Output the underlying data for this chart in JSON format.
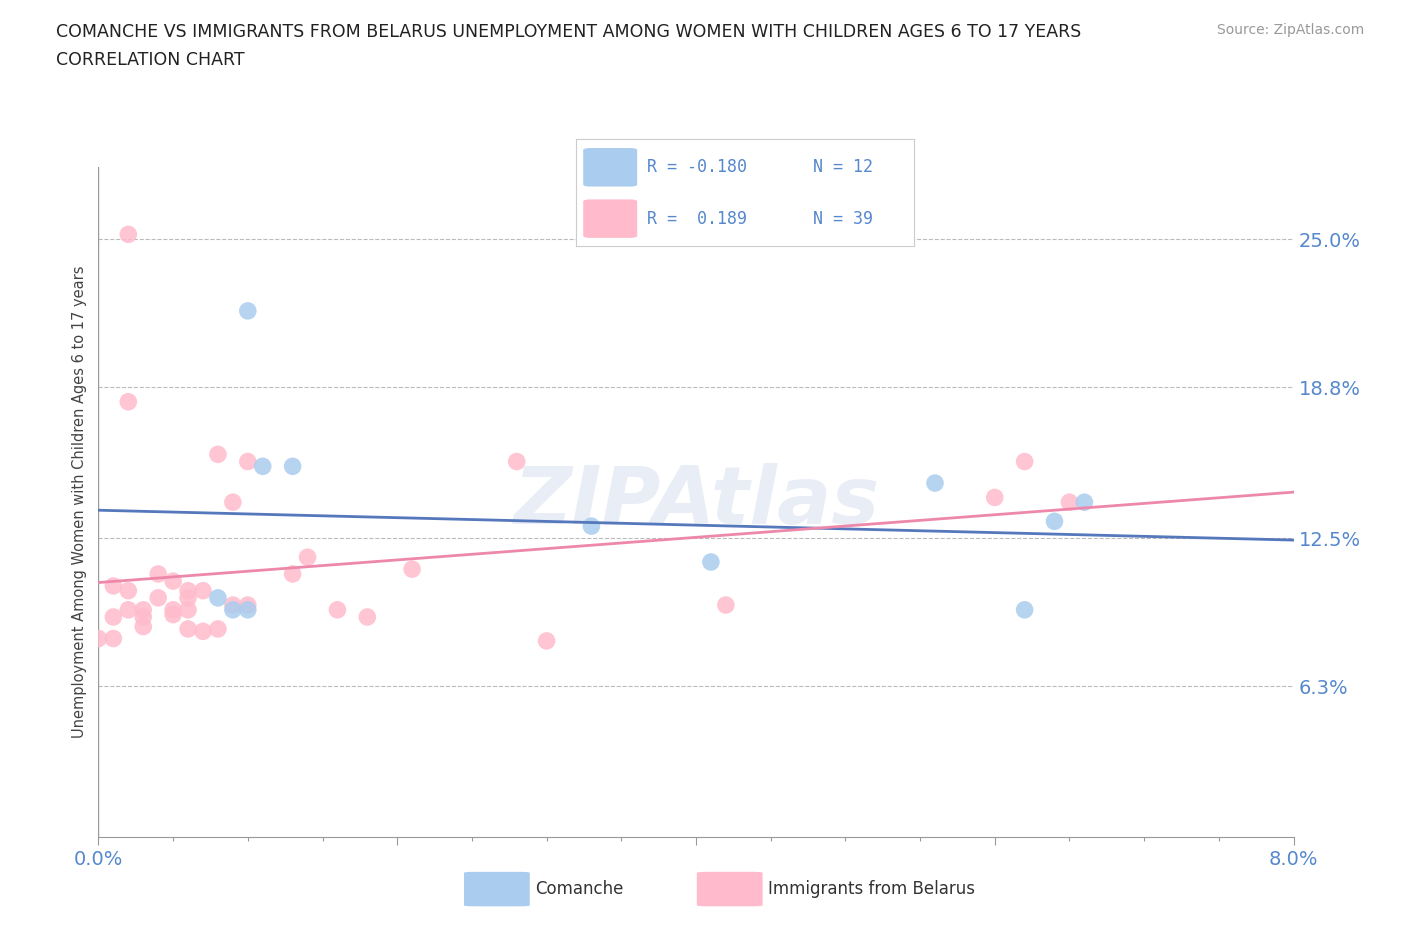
{
  "title_line1": "COMANCHE VS IMMIGRANTS FROM BELARUS UNEMPLOYMENT AMONG WOMEN WITH CHILDREN AGES 6 TO 17 YEARS",
  "title_line2": "CORRELATION CHART",
  "source_text": "Source: ZipAtlas.com",
  "ylabel": "Unemployment Among Women with Children Ages 6 to 17 years",
  "x_min": 0.0,
  "x_max": 0.08,
  "y_min": 0.0,
  "y_max": 0.28,
  "y_ticks": [
    0.063,
    0.125,
    0.188,
    0.25
  ],
  "y_tick_labels": [
    "6.3%",
    "12.5%",
    "18.8%",
    "25.0%"
  ],
  "comanche_color": "#aaccee",
  "belarus_color": "#ffbbcc",
  "trend_comanche_color": "#5577bb",
  "trend_belarus_color": "#ee88aa",
  "watermark": "ZIPAtlas",
  "bg_color": "#ffffff",
  "grid_color": "#bbbbbb",
  "text_color": "#5588cc",
  "comanche_x": [
    0.008,
    0.009,
    0.01,
    0.01,
    0.011,
    0.013,
    0.033,
    0.041,
    0.056,
    0.062,
    0.064,
    0.066
  ],
  "comanche_y": [
    0.1,
    0.095,
    0.095,
    0.22,
    0.155,
    0.155,
    0.13,
    0.115,
    0.148,
    0.095,
    0.132,
    0.14
  ],
  "belarus_x": [
    0.0,
    0.001,
    0.001,
    0.001,
    0.002,
    0.002,
    0.002,
    0.002,
    0.003,
    0.003,
    0.003,
    0.004,
    0.004,
    0.005,
    0.005,
    0.005,
    0.006,
    0.006,
    0.006,
    0.006,
    0.007,
    0.007,
    0.008,
    0.008,
    0.009,
    0.009,
    0.01,
    0.01,
    0.013,
    0.014,
    0.016,
    0.018,
    0.021,
    0.028,
    0.03,
    0.042,
    0.06,
    0.062,
    0.065
  ],
  "belarus_y": [
    0.083,
    0.105,
    0.083,
    0.092,
    0.252,
    0.182,
    0.103,
    0.095,
    0.095,
    0.092,
    0.088,
    0.11,
    0.1,
    0.095,
    0.107,
    0.093,
    0.103,
    0.1,
    0.095,
    0.087,
    0.086,
    0.103,
    0.16,
    0.087,
    0.14,
    0.097,
    0.157,
    0.097,
    0.11,
    0.117,
    0.095,
    0.092,
    0.112,
    0.157,
    0.082,
    0.097,
    0.142,
    0.157,
    0.14
  ]
}
